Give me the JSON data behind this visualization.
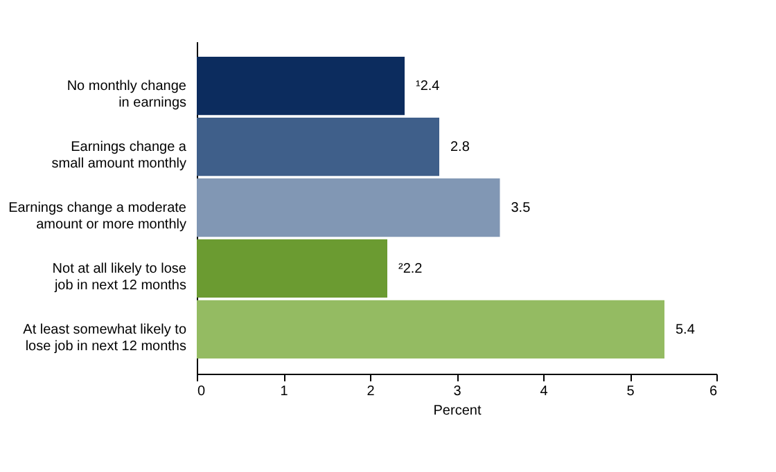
{
  "chart_data": {
    "type": "bar",
    "orientation": "horizontal",
    "categories": [
      "No monthly change in earnings",
      "Earnings change a small amount monthly",
      "Earnings change a moderate amount or more monthly",
      "Not at all likely to lose job in next 12 months",
      "At least somewhat likely to lose job in next 12 months"
    ],
    "values": [
      2.4,
      2.8,
      3.5,
      2.2,
      5.4
    ],
    "colors": [
      "#0c2c5e",
      "#3f5f8a",
      "#8197b4",
      "#6b9b31",
      "#94bb62"
    ],
    "value_labels": [
      "¹2.4",
      "2.8",
      "3.5",
      "²2.2",
      "5.4"
    ],
    "xlabel": "Percent",
    "xlim": [
      0,
      6
    ],
    "xticks": [
      0,
      1,
      2,
      3,
      4,
      5,
      6
    ],
    "grid": false
  }
}
